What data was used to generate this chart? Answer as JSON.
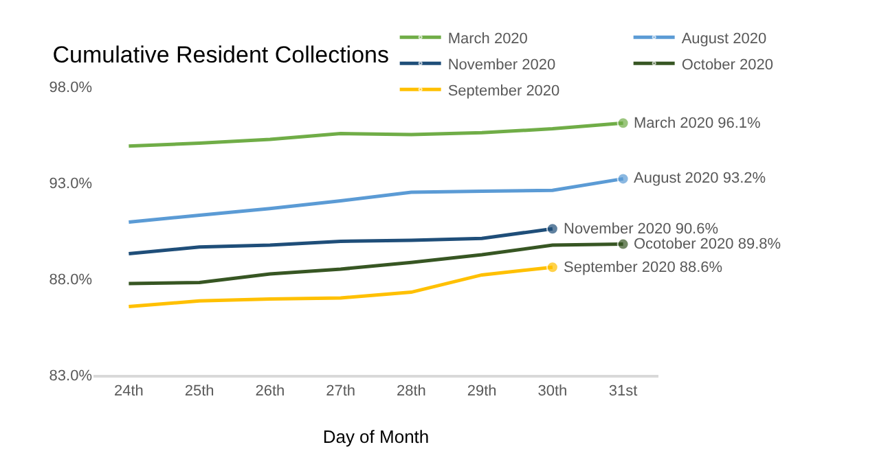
{
  "chart_data": {
    "type": "line",
    "title": "Cumulative Resident Collections",
    "xlabel": "Day of Month",
    "categories": [
      "24th",
      "25th",
      "26th",
      "27th",
      "28th",
      "29th",
      "30th",
      "31st"
    ],
    "series": [
      {
        "name": "March 2020",
        "color": "#70ad47",
        "values": [
          94.9,
          95.05,
          95.25,
          95.55,
          95.5,
          95.6,
          95.8,
          96.1
        ]
      },
      {
        "name": "August 2020",
        "color": "#5b9bd5",
        "values": [
          90.95,
          91.3,
          91.65,
          92.05,
          92.5,
          92.55,
          92.6,
          93.2
        ]
      },
      {
        "name": "November 2020",
        "color": "#1f4e79",
        "values": [
          89.3,
          89.65,
          89.75,
          89.95,
          90.0,
          90.1,
          90.6,
          null
        ]
      },
      {
        "name": "October 2020",
        "color": "#375623",
        "values": [
          87.75,
          87.8,
          88.25,
          88.5,
          88.85,
          89.25,
          89.75,
          89.8
        ]
      },
      {
        "name": "September 2020",
        "color": "#ffc000",
        "values": [
          86.55,
          86.85,
          86.95,
          87.0,
          87.3,
          88.2,
          88.6,
          null
        ]
      }
    ],
    "ylim": [
      83,
      98
    ],
    "yticks": [
      {
        "value": 83,
        "label": "83.0%"
      },
      {
        "value": 88,
        "label": "88.0%"
      },
      {
        "value": 93,
        "label": "93.0%"
      },
      {
        "value": 98,
        "label": "98.0%"
      }
    ],
    "grid": false,
    "legend": "top right",
    "annotations": [
      {
        "text": "March 2020 96.1%",
        "x": "31st",
        "y": 96.1
      },
      {
        "text": "August 2020 93.2%",
        "x": "31st",
        "y": 93.2
      },
      {
        "text": "November 2020 90.6%",
        "x": "30th",
        "y": 90.6
      },
      {
        "text": "Ocotober 2020 89.8%",
        "x": "31st",
        "y": 89.8
      },
      {
        "text": "September 2020 88.6%",
        "x": "30th",
        "y": 88.6
      }
    ]
  }
}
